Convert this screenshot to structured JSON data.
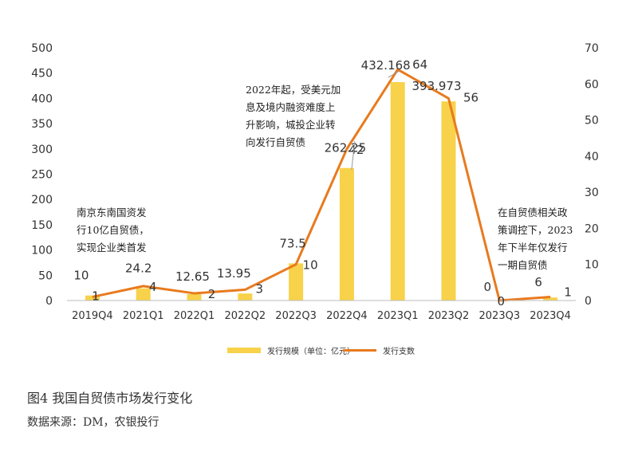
{
  "chart_data": {
    "type": "bar+line",
    "categories": [
      "2019Q4",
      "2021Q1",
      "2022Q1",
      "2022Q2",
      "2022Q3",
      "2022Q4",
      "2023Q1",
      "2023Q2",
      "2023Q3",
      "2023Q4"
    ],
    "series": [
      {
        "name": "发行规模（单位：亿元）",
        "type": "bar",
        "axis": "left",
        "values": [
          10,
          24.2,
          12.65,
          13.95,
          73.5,
          262.25,
          432.168,
          393.973,
          0,
          6
        ],
        "labels": [
          "10",
          "24.2",
          "12.65",
          "13.95",
          "73.5",
          "262.25",
          "432.168",
          "393.973",
          "0",
          "6"
        ]
      },
      {
        "name": "发行支数",
        "type": "line",
        "axis": "right",
        "values": [
          1,
          4,
          2,
          3,
          10,
          42,
          64,
          56,
          0,
          1
        ],
        "labels": [
          "1",
          "4",
          "2",
          "3",
          "10",
          "42",
          "64",
          "56",
          "0",
          "1"
        ]
      }
    ],
    "y_left": {
      "min": 0,
      "max": 500,
      "ticks": [
        "0",
        "50",
        "100",
        "150",
        "200",
        "250",
        "300",
        "350",
        "400",
        "450",
        "500"
      ]
    },
    "y_right": {
      "min": 0,
      "max": 70,
      "ticks": [
        "0",
        "10",
        "20",
        "30",
        "40",
        "50",
        "60",
        "70"
      ]
    },
    "grid": false,
    "legend_position": "bottom",
    "colors": {
      "bar": "#F7D24A",
      "line": "#E87A1E"
    }
  },
  "annotations": {
    "left_note": "南京东南国资发\n行10亿自贸债，\n实现企业类首发",
    "middle_note": "2022年起，受美元加\n息及境内融资难度上\n升影响，城投企业转\n向发行自贸债",
    "right_note": "在自贸债相关政\n策调控下，2023\n年下半年仅发行\n一期自贸债"
  },
  "figure_title": "图4  我国自贸债市场发行变化",
  "source": "数据来源：DM，农银投行"
}
